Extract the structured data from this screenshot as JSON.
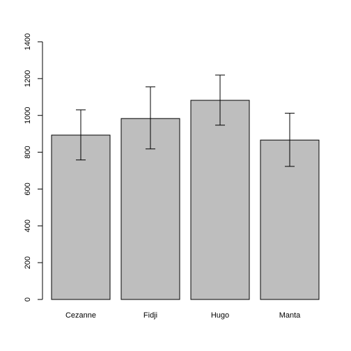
{
  "chart_data": {
    "type": "bar",
    "title": "",
    "xlabel": "",
    "ylabel": "",
    "categories": [
      "Cezanne",
      "Fidji",
      "Hugo",
      "Manta"
    ],
    "values": [
      893,
      983,
      1082,
      866
    ],
    "error_bars": [
      {
        "low": 758,
        "high": 1030
      },
      {
        "low": 818,
        "high": 1155
      },
      {
        "low": 947,
        "high": 1219
      },
      {
        "low": 723,
        "high": 1012
      }
    ],
    "ylim": [
      0,
      1400
    ],
    "yticks": [
      0,
      200,
      400,
      600,
      800,
      1000,
      1200,
      1400
    ],
    "grid": false,
    "legend": "none",
    "bar_color": "#bebebe",
    "edge_color": "#000000"
  }
}
